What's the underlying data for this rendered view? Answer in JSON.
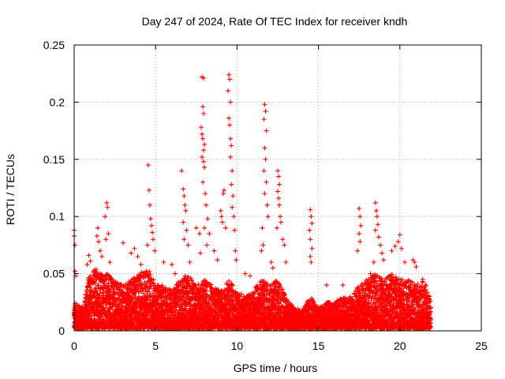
{
  "chart_data": {
    "type": "scatter",
    "title": "Day 247 of 2024, Rate Of TEC Index for receiver kndh",
    "xlabel": "GPS time / hours",
    "ylabel": "ROTI / TECUs",
    "xlim": [
      0,
      25
    ],
    "ylim": [
      0,
      0.25
    ],
    "x_ticks": [
      0,
      5,
      10,
      15,
      20,
      25
    ],
    "x_tick_labels": [
      "0",
      "5",
      "10",
      "15",
      "20",
      "25"
    ],
    "y_ticks": [
      0,
      0.05,
      0.1,
      0.15,
      0.2,
      0.25
    ],
    "y_tick_labels": [
      "0",
      "0.05",
      "0.1",
      "0.15",
      "0.2",
      "0.25"
    ],
    "grid": true,
    "marker": "plus",
    "color": "#ff0000",
    "series": [
      {
        "points": [
          [
            0.0,
            0.088
          ],
          [
            0.0,
            0.083
          ],
          [
            0.05,
            0.075
          ],
          [
            0.05,
            0.02
          ],
          [
            0.1,
            0.015
          ],
          [
            0.0,
            0.005
          ],
          [
            0.1,
            0.003
          ],
          [
            0.05,
            0.052
          ],
          [
            0.1,
            0.048
          ],
          [
            0.8,
            0.058
          ],
          [
            0.9,
            0.066
          ],
          [
            1.0,
            0.061
          ],
          [
            1.2,
            0.052
          ],
          [
            1.4,
            0.083
          ],
          [
            1.45,
            0.09
          ],
          [
            1.5,
            0.078
          ],
          [
            1.6,
            0.07
          ],
          [
            1.7,
            0.065
          ],
          [
            1.9,
            0.1
          ],
          [
            2.0,
            0.112
          ],
          [
            2.05,
            0.108
          ],
          [
            2.1,
            0.085
          ],
          [
            1.95,
            0.08
          ],
          [
            2.2,
            0.06
          ],
          [
            2.3,
            0.045
          ],
          [
            3.0,
            0.077
          ],
          [
            3.5,
            0.068
          ],
          [
            3.7,
            0.072
          ],
          [
            3.9,
            0.065
          ],
          [
            4.1,
            0.058
          ],
          [
            4.55,
            0.145
          ],
          [
            4.6,
            0.123
          ],
          [
            4.65,
            0.11
          ],
          [
            4.7,
            0.098
          ],
          [
            4.75,
            0.092
          ],
          [
            4.8,
            0.086
          ],
          [
            4.85,
            0.08
          ],
          [
            4.5,
            0.075
          ],
          [
            4.95,
            0.07
          ],
          [
            5.5,
            0.06
          ],
          [
            6.0,
            0.058
          ],
          [
            6.2,
            0.05
          ],
          [
            6.6,
            0.14
          ],
          [
            6.7,
            0.124
          ],
          [
            6.75,
            0.118
          ],
          [
            6.8,
            0.11
          ],
          [
            6.85,
            0.105
          ],
          [
            6.7,
            0.095
          ],
          [
            6.9,
            0.088
          ],
          [
            6.75,
            0.08
          ],
          [
            7.0,
            0.075
          ],
          [
            7.1,
            0.06
          ],
          [
            7.5,
            0.09
          ],
          [
            7.7,
            0.085
          ],
          [
            7.75,
            0.068
          ],
          [
            7.85,
            0.222
          ],
          [
            7.95,
            0.221
          ],
          [
            7.9,
            0.196
          ],
          [
            7.95,
            0.19
          ],
          [
            7.8,
            0.178
          ],
          [
            7.85,
            0.172
          ],
          [
            7.9,
            0.168
          ],
          [
            8.0,
            0.163
          ],
          [
            7.95,
            0.158
          ],
          [
            7.85,
            0.152
          ],
          [
            7.95,
            0.148
          ],
          [
            8.0,
            0.143
          ],
          [
            7.9,
            0.13
          ],
          [
            8.05,
            0.12
          ],
          [
            8.1,
            0.11
          ],
          [
            8.2,
            0.098
          ],
          [
            8.3,
            0.085
          ],
          [
            8.0,
            0.09
          ],
          [
            8.15,
            0.075
          ],
          [
            8.6,
            0.07
          ],
          [
            8.8,
            0.062
          ],
          [
            9.0,
            0.105
          ],
          [
            9.05,
            0.1
          ],
          [
            9.1,
            0.095
          ],
          [
            9.15,
            0.12
          ],
          [
            9.2,
            0.123
          ],
          [
            9.3,
            0.09
          ],
          [
            9.5,
            0.224
          ],
          [
            9.55,
            0.22
          ],
          [
            9.45,
            0.21
          ],
          [
            9.6,
            0.2
          ],
          [
            9.5,
            0.186
          ],
          [
            9.55,
            0.18
          ],
          [
            9.6,
            0.168
          ],
          [
            9.65,
            0.162
          ],
          [
            9.6,
            0.152
          ],
          [
            9.7,
            0.14
          ],
          [
            9.65,
            0.128
          ],
          [
            9.75,
            0.118
          ],
          [
            9.7,
            0.108
          ],
          [
            9.8,
            0.1
          ],
          [
            9.85,
            0.088
          ],
          [
            9.9,
            0.07
          ],
          [
            9.95,
            0.062
          ],
          [
            10.5,
            0.05
          ],
          [
            10.8,
            0.048
          ],
          [
            11.7,
            0.198
          ],
          [
            11.75,
            0.192
          ],
          [
            11.65,
            0.185
          ],
          [
            11.8,
            0.175
          ],
          [
            11.7,
            0.16
          ],
          [
            11.75,
            0.15
          ],
          [
            11.65,
            0.14
          ],
          [
            11.8,
            0.13
          ],
          [
            11.7,
            0.12
          ],
          [
            11.85,
            0.11
          ],
          [
            11.9,
            0.1
          ],
          [
            11.55,
            0.09
          ],
          [
            11.6,
            0.075
          ],
          [
            11.5,
            0.07
          ],
          [
            12.1,
            0.06
          ],
          [
            12.2,
            0.055
          ],
          [
            12.5,
            0.14
          ],
          [
            12.55,
            0.135
          ],
          [
            12.6,
            0.128
          ],
          [
            12.5,
            0.122
          ],
          [
            12.55,
            0.116
          ],
          [
            12.6,
            0.11
          ],
          [
            12.65,
            0.1
          ],
          [
            12.7,
            0.095
          ],
          [
            12.45,
            0.09
          ],
          [
            12.8,
            0.08
          ],
          [
            12.9,
            0.075
          ],
          [
            13.0,
            0.06
          ],
          [
            14.5,
            0.106
          ],
          [
            14.55,
            0.1
          ],
          [
            14.6,
            0.094
          ],
          [
            14.45,
            0.088
          ],
          [
            14.5,
            0.08
          ],
          [
            14.6,
            0.072
          ],
          [
            14.5,
            0.065
          ],
          [
            14.55,
            0.06
          ],
          [
            15.5,
            0.04
          ],
          [
            16.5,
            0.04
          ],
          [
            17.5,
            0.107
          ],
          [
            17.55,
            0.1
          ],
          [
            17.6,
            0.092
          ],
          [
            17.5,
            0.085
          ],
          [
            17.55,
            0.078
          ],
          [
            17.4,
            0.07
          ],
          [
            18.2,
            0.05
          ],
          [
            18.4,
            0.06
          ],
          [
            18.5,
            0.112
          ],
          [
            18.55,
            0.105
          ],
          [
            18.6,
            0.1
          ],
          [
            18.65,
            0.093
          ],
          [
            18.5,
            0.088
          ],
          [
            18.7,
            0.082
          ],
          [
            18.8,
            0.075
          ],
          [
            18.9,
            0.068
          ],
          [
            19.0,
            0.062
          ],
          [
            19.5,
            0.07
          ],
          [
            19.7,
            0.074
          ],
          [
            19.9,
            0.078
          ],
          [
            20.0,
            0.084
          ],
          [
            20.1,
            0.072
          ],
          [
            20.3,
            0.06
          ],
          [
            20.8,
            0.062
          ],
          [
            20.9,
            0.06
          ],
          [
            21.0,
            0.056
          ],
          [
            21.4,
            0.045
          ],
          [
            21.6,
            0.04
          ],
          [
            21.8,
            0.03
          ]
        ],
        "dense_band": {
          "x_range": [
            0.0,
            21.9
          ],
          "y_min": 0.002,
          "envelope": [
            [
              0.0,
              0.025
            ],
            [
              0.6,
              0.02
            ],
            [
              0.8,
              0.045
            ],
            [
              1.2,
              0.055
            ],
            [
              2.0,
              0.05
            ],
            [
              2.5,
              0.045
            ],
            [
              3.0,
              0.04
            ],
            [
              3.5,
              0.045
            ],
            [
              4.0,
              0.05
            ],
            [
              4.6,
              0.055
            ],
            [
              5.0,
              0.04
            ],
            [
              5.5,
              0.04
            ],
            [
              6.0,
              0.035
            ],
            [
              6.5,
              0.045
            ],
            [
              7.0,
              0.05
            ],
            [
              7.5,
              0.04
            ],
            [
              8.0,
              0.045
            ],
            [
              8.5,
              0.04
            ],
            [
              9.0,
              0.035
            ],
            [
              9.5,
              0.045
            ],
            [
              10.0,
              0.035
            ],
            [
              10.5,
              0.03
            ],
            [
              11.0,
              0.035
            ],
            [
              11.5,
              0.045
            ],
            [
              12.0,
              0.04
            ],
            [
              12.5,
              0.045
            ],
            [
              13.0,
              0.03
            ],
            [
              13.5,
              0.02
            ],
            [
              14.0,
              0.018
            ],
            [
              14.5,
              0.03
            ],
            [
              15.0,
              0.02
            ],
            [
              15.5,
              0.025
            ],
            [
              16.0,
              0.025
            ],
            [
              16.5,
              0.03
            ],
            [
              17.0,
              0.03
            ],
            [
              17.5,
              0.04
            ],
            [
              18.0,
              0.045
            ],
            [
              18.5,
              0.05
            ],
            [
              19.0,
              0.045
            ],
            [
              19.5,
              0.05
            ],
            [
              20.0,
              0.045
            ],
            [
              20.5,
              0.045
            ],
            [
              21.0,
              0.04
            ],
            [
              21.5,
              0.045
            ],
            [
              21.9,
              0.025
            ]
          ]
        }
      }
    ]
  }
}
